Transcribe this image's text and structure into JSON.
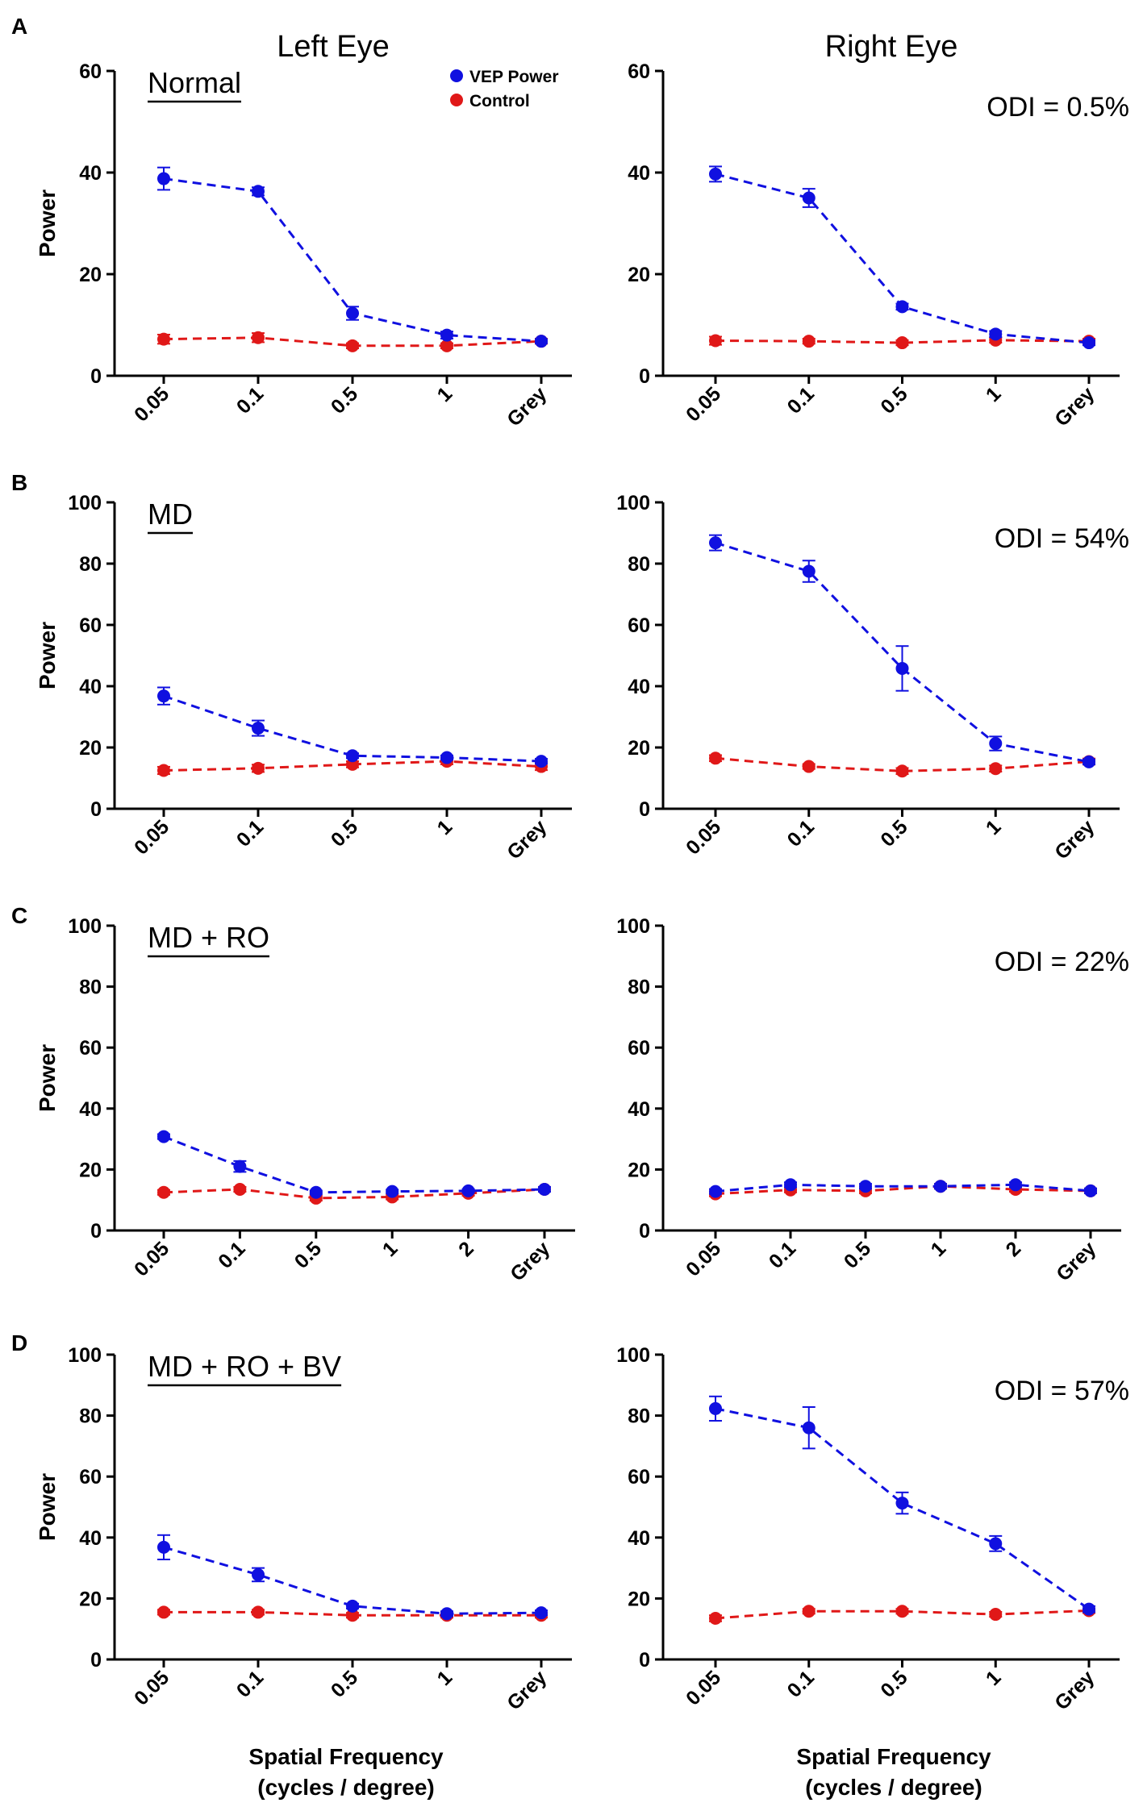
{
  "column_titles": [
    "Left Eye",
    "Right Eye"
  ],
  "legend": {
    "vep": "VEP Power",
    "control": "Control"
  },
  "colors": {
    "vep": "#1010e0",
    "control": "#e01818"
  },
  "xlabel_line1": "Spatial Frequency",
  "xlabel_line2": "(cycles / degree)",
  "chart_data": [
    {
      "type": "line",
      "panel": "A",
      "condition": "Normal",
      "eye": "Left Eye",
      "odi": "",
      "categories": [
        "0.05",
        "0.1",
        "0.5",
        "1",
        "Grey"
      ],
      "ylabel": "Power",
      "ylim": [
        0,
        60
      ],
      "yticks": [
        0,
        20,
        40,
        60
      ],
      "series": [
        {
          "name": "VEP Power",
          "values": [
            38.8,
            36.3,
            12.3,
            8.0,
            6.8
          ],
          "errors": [
            2.2,
            0.8,
            1.3,
            0.7,
            0.4
          ]
        },
        {
          "name": "Control",
          "values": [
            7.2,
            7.5,
            5.9,
            5.9,
            6.8
          ],
          "errors": [
            0.9,
            0.9,
            0.5,
            0.5,
            0.5
          ]
        }
      ]
    },
    {
      "type": "line",
      "panel": "A",
      "condition": "",
      "eye": "Right Eye",
      "odi": "ODI = 0.5%",
      "categories": [
        "0.05",
        "0.1",
        "0.5",
        "1",
        "Grey"
      ],
      "ylabel": "",
      "ylim": [
        0,
        60
      ],
      "yticks": [
        0,
        20,
        40,
        60
      ],
      "series": [
        {
          "name": "VEP Power",
          "values": [
            39.7,
            35.0,
            13.6,
            8.2,
            6.5
          ],
          "errors": [
            1.5,
            1.8,
            0.6,
            0.6,
            0.5
          ]
        },
        {
          "name": "Control",
          "values": [
            6.9,
            6.8,
            6.5,
            7.0,
            6.8
          ],
          "errors": [
            0.8,
            0.5,
            0.5,
            0.5,
            0.5
          ]
        }
      ]
    },
    {
      "type": "line",
      "panel": "B",
      "condition": "MD",
      "eye": "Left Eye",
      "odi": "",
      "categories": [
        "0.05",
        "0.1",
        "0.5",
        "1",
        "Grey"
      ],
      "ylabel": "Power",
      "ylim": [
        0,
        100
      ],
      "yticks": [
        0,
        20,
        40,
        60,
        80,
        100
      ],
      "series": [
        {
          "name": "VEP Power",
          "values": [
            36.8,
            26.3,
            17.3,
            16.7,
            15.5
          ],
          "errors": [
            2.8,
            2.5,
            0.8,
            0.7,
            0.8
          ]
        },
        {
          "name": "Control",
          "values": [
            12.5,
            13.2,
            14.5,
            15.5,
            13.8
          ],
          "errors": [
            1.2,
            1.2,
            1.0,
            1.0,
            1.2
          ]
        }
      ]
    },
    {
      "type": "line",
      "panel": "B",
      "condition": "",
      "eye": "Right Eye",
      "odi": "ODI = 54%",
      "categories": [
        "0.05",
        "0.1",
        "0.5",
        "1",
        "Grey"
      ],
      "ylabel": "",
      "ylim": [
        0,
        100
      ],
      "yticks": [
        0,
        20,
        40,
        60,
        80,
        100
      ],
      "series": [
        {
          "name": "VEP Power",
          "values": [
            86.8,
            77.5,
            45.8,
            21.3,
            15.3
          ],
          "errors": [
            2.5,
            3.5,
            7.3,
            2.3,
            0.8
          ]
        },
        {
          "name": "Control",
          "values": [
            16.5,
            13.8,
            12.3,
            13.1,
            15.4
          ],
          "errors": [
            1.0,
            0.8,
            1.0,
            1.0,
            1.0
          ]
        }
      ]
    },
    {
      "type": "line",
      "panel": "C",
      "condition": "MD + RO",
      "eye": "Left Eye",
      "odi": "",
      "categories": [
        "0.05",
        "0.1",
        "0.5",
        "1",
        "2",
        "Grey"
      ],
      "ylabel": "Power",
      "ylim": [
        0,
        100
      ],
      "yticks": [
        0,
        20,
        40,
        60,
        80,
        100
      ],
      "series": [
        {
          "name": "VEP Power",
          "values": [
            30.8,
            21.0,
            12.5,
            12.8,
            13.0,
            13.5
          ],
          "errors": [
            0.8,
            1.8,
            0.6,
            0.6,
            0.6,
            0.8
          ]
        },
        {
          "name": "Control",
          "values": [
            12.5,
            13.5,
            10.6,
            11.0,
            12.2,
            13.5
          ],
          "errors": [
            0.8,
            0.8,
            0.8,
            0.8,
            0.8,
            0.8
          ]
        }
      ]
    },
    {
      "type": "line",
      "panel": "C",
      "condition": "",
      "eye": "Right Eye",
      "odi": "ODI = 22%",
      "categories": [
        "0.05",
        "0.1",
        "0.5",
        "1",
        "2",
        "Grey"
      ],
      "ylabel": "",
      "ylim": [
        0,
        100
      ],
      "yticks": [
        0,
        20,
        40,
        60,
        80,
        100
      ],
      "series": [
        {
          "name": "VEP Power",
          "values": [
            12.8,
            15.0,
            14.5,
            14.5,
            15.0,
            13.0
          ],
          "errors": [
            0.8,
            0.8,
            0.8,
            0.8,
            0.8,
            0.8
          ]
        },
        {
          "name": "Control",
          "values": [
            12.0,
            13.3,
            13.0,
            14.5,
            13.5,
            13.0
          ],
          "errors": [
            0.8,
            0.8,
            0.8,
            0.8,
            0.8,
            0.8
          ]
        }
      ]
    },
    {
      "type": "line",
      "panel": "D",
      "condition": "MD + RO + BV",
      "eye": "Left Eye",
      "odi": "",
      "categories": [
        "0.05",
        "0.1",
        "0.5",
        "1",
        "Grey"
      ],
      "ylabel": "Power",
      "ylim": [
        0,
        100
      ],
      "yticks": [
        0,
        20,
        40,
        60,
        80,
        100
      ],
      "series": [
        {
          "name": "VEP Power",
          "values": [
            36.8,
            27.8,
            17.5,
            15.0,
            15.3
          ],
          "errors": [
            4.0,
            2.2,
            0.8,
            0.8,
            0.8
          ]
        },
        {
          "name": "Control",
          "values": [
            15.5,
            15.5,
            14.5,
            14.5,
            14.5
          ],
          "errors": [
            0.8,
            0.8,
            0.8,
            0.8,
            0.8
          ]
        }
      ]
    },
    {
      "type": "line",
      "panel": "D",
      "condition": "",
      "eye": "Right Eye",
      "odi": "ODI = 57%",
      "categories": [
        "0.05",
        "0.1",
        "0.5",
        "1",
        "Grey"
      ],
      "ylabel": "",
      "ylim": [
        0,
        100
      ],
      "yticks": [
        0,
        20,
        40,
        60,
        80,
        100
      ],
      "series": [
        {
          "name": "VEP Power",
          "values": [
            82.3,
            76.0,
            51.3,
            38.0,
            16.5
          ],
          "errors": [
            4.0,
            6.8,
            3.5,
            2.5,
            1.0
          ]
        },
        {
          "name": "Control",
          "values": [
            13.5,
            15.8,
            15.8,
            14.8,
            16.0
          ],
          "errors": [
            1.0,
            0.8,
            0.8,
            0.8,
            0.8
          ]
        }
      ]
    }
  ]
}
